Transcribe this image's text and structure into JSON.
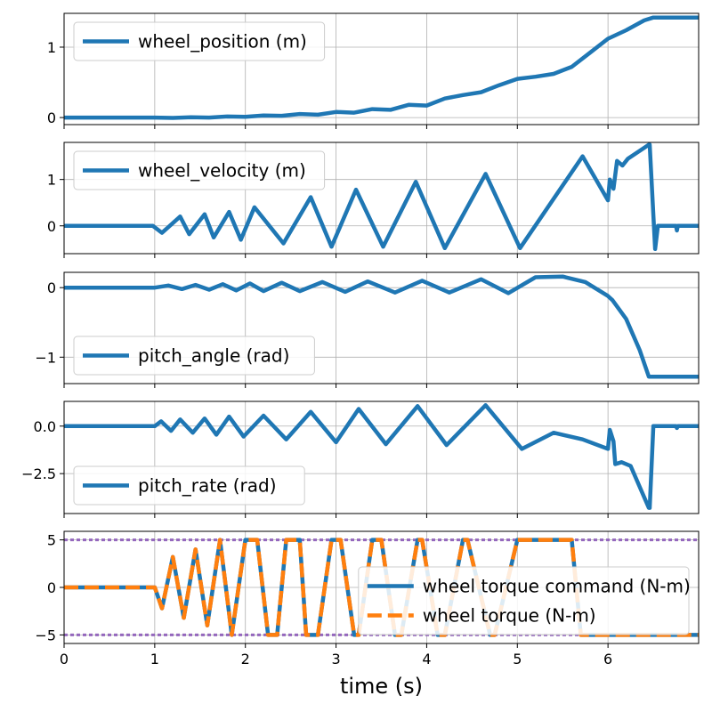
{
  "chart_data": {
    "type": "line",
    "xlabel": "time (s)",
    "xlim": [
      0,
      7
    ],
    "xticks": [
      "0",
      "1",
      "2",
      "3",
      "4",
      "5",
      "6"
    ],
    "grid": true,
    "subplots": [
      {
        "key": "wheel_position",
        "ylim": [
          -0.1,
          1.48
        ],
        "yticks": [
          {
            "v": 0,
            "label": "0"
          },
          {
            "v": 1,
            "label": "1"
          }
        ],
        "legend": "top-left",
        "series": [
          {
            "name": "wheel_position (m)",
            "color": "#1f77b4",
            "style": "solid",
            "x": [
              0,
              1,
              1.2,
              1.4,
              1.6,
              1.8,
              2,
              2.2,
              2.4,
              2.6,
              2.8,
              3,
              3.2,
              3.4,
              3.6,
              3.8,
              4,
              4.2,
              4.4,
              4.6,
              4.8,
              5,
              5.2,
              5.4,
              5.6,
              5.8,
              6,
              6.2,
              6.4,
              6.5,
              7
            ],
            "y": [
              0,
              0,
              -0.005,
              0.005,
              0,
              0.015,
              0.01,
              0.03,
              0.025,
              0.05,
              0.04,
              0.08,
              0.07,
              0.12,
              0.11,
              0.18,
              0.17,
              0.27,
              0.32,
              0.36,
              0.46,
              0.55,
              0.58,
              0.62,
              0.72,
              0.92,
              1.12,
              1.24,
              1.38,
              1.42,
              1.42
            ]
          }
        ]
      },
      {
        "key": "wheel_velocity",
        "ylim": [
          -0.6,
          1.8
        ],
        "yticks": [
          {
            "v": 0,
            "label": "0"
          },
          {
            "v": 1,
            "label": "1"
          }
        ],
        "legend": "top-left",
        "series": [
          {
            "name": "wheel_velocity (m)",
            "color": "#1f77b4",
            "style": "solid",
            "x": [
              0,
              0.98,
              1.08,
              1.28,
              1.38,
              1.55,
              1.65,
              1.82,
              1.95,
              2.1,
              2.42,
              2.72,
              2.95,
              3.22,
              3.52,
              3.88,
              4.2,
              4.65,
              5.03,
              5.72,
              6.0,
              6.02,
              6.06,
              6.1,
              6.16,
              6.22,
              6.45,
              6.46,
              6.52,
              6.55,
              6.6,
              6.75,
              6.76,
              6.77,
              7
            ],
            "y": [
              0,
              0,
              -0.15,
              0.2,
              -0.18,
              0.25,
              -0.25,
              0.3,
              -0.3,
              0.4,
              -0.38,
              0.62,
              -0.45,
              0.78,
              -0.45,
              0.95,
              -0.48,
              1.12,
              -0.48,
              1.5,
              0.55,
              1.0,
              0.8,
              1.4,
              1.3,
              1.45,
              1.75,
              1.75,
              -0.5,
              0,
              0,
              0,
              -0.1,
              0,
              0
            ]
          }
        ]
      },
      {
        "key": "pitch_angle",
        "ylim": [
          -1.38,
          0.22
        ],
        "yticks": [
          {
            "v": 0,
            "label": "0"
          },
          {
            "v": -1,
            "label": "−1"
          }
        ],
        "legend": "bottom-left",
        "series": [
          {
            "name": "pitch_angle (rad)",
            "color": "#1f77b4",
            "style": "solid",
            "x": [
              0,
              1,
              1.15,
              1.3,
              1.45,
              1.6,
              1.75,
              1.9,
              2.05,
              2.2,
              2.4,
              2.6,
              2.85,
              3.1,
              3.35,
              3.65,
              3.95,
              4.25,
              4.6,
              4.9,
              5.2,
              5.5,
              5.75,
              6.0,
              6.05,
              6.2,
              6.35,
              6.45,
              7
            ],
            "y": [
              0,
              0,
              0.03,
              -0.02,
              0.04,
              -0.03,
              0.05,
              -0.04,
              0.06,
              -0.05,
              0.07,
              -0.05,
              0.08,
              -0.06,
              0.09,
              -0.07,
              0.1,
              -0.07,
              0.12,
              -0.08,
              0.15,
              0.16,
              0.08,
              -0.12,
              -0.18,
              -0.45,
              -0.9,
              -1.28,
              -1.28
            ]
          }
        ]
      },
      {
        "key": "pitch_rate",
        "ylim": [
          -4.6,
          1.3
        ],
        "yticks": [
          {
            "v": 0,
            "label": "0.0"
          },
          {
            "v": -2.5,
            "label": "−2.5"
          }
        ],
        "legend": "bottom-left",
        "series": [
          {
            "name": "pitch_rate (rad)",
            "color": "#1f77b4",
            "style": "solid",
            "x": [
              0,
              1,
              1.07,
              1.18,
              1.28,
              1.42,
              1.55,
              1.68,
              1.82,
              1.98,
              2.2,
              2.45,
              2.72,
              3.0,
              3.25,
              3.55,
              3.9,
              4.22,
              4.65,
              5.05,
              5.4,
              5.72,
              6.0,
              6.02,
              6.06,
              6.08,
              6.15,
              6.25,
              6.45,
              6.46,
              6.5,
              6.55,
              6.7,
              6.75,
              6.76,
              6.77,
              7
            ],
            "y": [
              0,
              0,
              0.25,
              -0.25,
              0.35,
              -0.35,
              0.4,
              -0.45,
              0.5,
              -0.55,
              0.55,
              -0.7,
              0.75,
              -0.85,
              0.9,
              -0.95,
              1.05,
              -1.0,
              1.1,
              -1.2,
              -0.35,
              -0.7,
              -1.2,
              -0.2,
              -0.8,
              -2.0,
              -1.9,
              -2.1,
              -4.3,
              -4.3,
              0,
              0,
              0,
              0,
              -0.1,
              0,
              0
            ]
          }
        ]
      },
      {
        "key": "wheel_torque",
        "ylim": [
          -5.9,
          5.9
        ],
        "yticks": [
          {
            "v": 5,
            "label": "5"
          },
          {
            "v": 0,
            "label": "0"
          },
          {
            "v": -5,
            "label": "−5"
          }
        ],
        "legend": "bottom-right",
        "limits": [
          5,
          -5
        ],
        "limit_color": "#9467bd",
        "series": [
          {
            "name": "wheel torque command (N-m)",
            "color": "#1f77b4",
            "style": "solid",
            "x": [
              0,
              1.0,
              1.08,
              1.2,
              1.32,
              1.45,
              1.58,
              1.72,
              1.85,
              2.0,
              2.13,
              2.25,
              2.35,
              2.45,
              2.6,
              2.67,
              2.8,
              2.95,
              3.05,
              3.2,
              3.25,
              3.4,
              3.5,
              3.65,
              3.72,
              3.9,
              3.95,
              4.12,
              4.2,
              4.4,
              4.45,
              4.7,
              4.75,
              5.0,
              5.07,
              5.6,
              5.7,
              5.75,
              6.0,
              6.1,
              7
            ],
            "y": [
              0,
              0,
              -2.2,
              3.2,
              -3.2,
              4,
              -4,
              5,
              -5,
              5,
              5,
              -5,
              -5,
              5,
              5,
              -5,
              -5,
              5,
              5,
              -5,
              -5,
              5,
              5,
              -5,
              -5,
              5,
              5,
              -5,
              -5,
              5,
              5,
              -5,
              -5,
              5,
              5,
              5,
              -5,
              -5,
              -5,
              -5,
              -5
            ]
          },
          {
            "name": "wheel torque (N-m)",
            "color": "#ff7f0e",
            "style": "dashed",
            "x": [
              0,
              1.0,
              1.08,
              1.2,
              1.32,
              1.45,
              1.58,
              1.72,
              1.85,
              2.0,
              2.13,
              2.25,
              2.35,
              2.45,
              2.6,
              2.67,
              2.8,
              2.95,
              3.05,
              3.2,
              3.25,
              3.4,
              3.5,
              3.65,
              3.72,
              3.9,
              3.95,
              4.12,
              4.2,
              4.4,
              4.45,
              4.7,
              4.75,
              5.0,
              5.07,
              5.6,
              5.7,
              5.75,
              6.0,
              6.1,
              7
            ],
            "y": [
              0,
              0,
              -2.2,
              3.2,
              -3.2,
              4,
              -4,
              5,
              -5,
              5,
              5,
              -5,
              -5,
              5,
              5,
              -5,
              -5,
              5,
              5,
              -5,
              -5,
              5,
              5,
              -5,
              -5,
              5,
              5,
              -5,
              -5,
              5,
              5,
              -5,
              -5,
              5,
              5,
              5,
              -5,
              -5,
              -5,
              -5,
              -5
            ]
          }
        ]
      }
    ]
  }
}
